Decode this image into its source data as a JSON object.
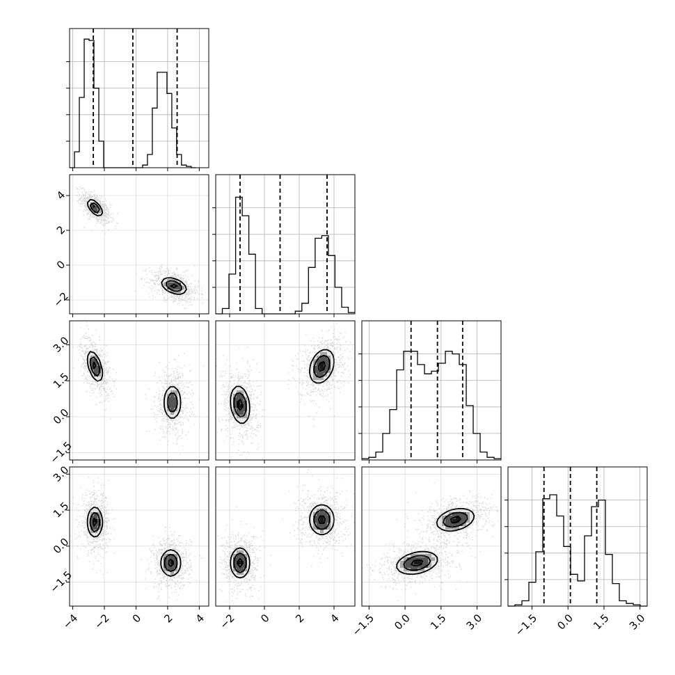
{
  "chart_data": {
    "type": "corner",
    "grid": true,
    "params": [
      {
        "index": 0,
        "lim": [
          -4.2,
          4.6
        ],
        "ticks": [
          -4,
          -2,
          0,
          2,
          4
        ],
        "tick_labels": [
          "−4",
          "−2",
          "0",
          "2",
          "4"
        ],
        "quantiles": [
          -2.7,
          -0.2,
          2.6
        ]
      },
      {
        "index": 1,
        "lim": [
          -2.8,
          5.2
        ],
        "ticks": [
          -2,
          0,
          2,
          4
        ],
        "tick_labels": [
          "−2",
          "0",
          "2",
          "4"
        ],
        "quantiles": [
          -1.4,
          0.9,
          3.6
        ]
      },
      {
        "index": 2,
        "lim": [
          -1.8,
          4.0
        ],
        "ticks": [
          -1.5,
          0.0,
          1.5,
          3.0
        ],
        "tick_labels": [
          "−1.5",
          "0.0",
          "1.5",
          "3.0"
        ],
        "quantiles": [
          0.25,
          1.35,
          2.4
        ]
      },
      {
        "index": 3,
        "lim": [
          -2.5,
          3.3
        ],
        "ticks": [
          -1.5,
          0.0,
          1.5,
          3.0
        ],
        "tick_labels": [
          "−1.5",
          "0.0",
          "1.5",
          "3.0"
        ],
        "quantiles": [
          -1.0,
          0.1,
          1.2
        ]
      }
    ],
    "histograms": [
      {
        "param": 0,
        "edges": [
          -4.2,
          3.8
        ],
        "counts": [
          0.0,
          0.12,
          0.53,
          0.97,
          0.96,
          0.6,
          0.2,
          0.0,
          0.0,
          0.0,
          0.0,
          0.0,
          0.0,
          0.0,
          0.0,
          0.02,
          0.1,
          0.45,
          0.72,
          0.72,
          0.56,
          0.3,
          0.1,
          0.02,
          0.01,
          0.0
        ]
      },
      {
        "param": 1,
        "edges": [
          -2.8,
          5.2
        ],
        "counts": [
          0.0,
          0.04,
          0.3,
          0.88,
          0.74,
          0.45,
          0.04,
          0.0,
          0.0,
          0.0,
          0.0,
          0.0,
          0.02,
          0.08,
          0.35,
          0.57,
          0.59,
          0.44,
          0.2,
          0.05,
          0.01
        ]
      },
      {
        "param": 2,
        "edges": [
          -1.8,
          4.0
        ],
        "counts": [
          0.01,
          0.02,
          0.06,
          0.2,
          0.38,
          0.68,
          0.82,
          0.82,
          0.72,
          0.65,
          0.67,
          0.73,
          0.82,
          0.8,
          0.72,
          0.41,
          0.2,
          0.06,
          0.02,
          0.01
        ]
      },
      {
        "param": 3,
        "edges": [
          -2.5,
          3.3
        ],
        "counts": [
          0.0,
          0.01,
          0.04,
          0.18,
          0.41,
          0.81,
          0.84,
          0.68,
          0.45,
          0.24,
          0.19,
          0.53,
          0.75,
          0.8,
          0.39,
          0.17,
          0.04,
          0.02,
          0.01,
          0.0
        ]
      }
    ],
    "joint_panels": [
      {
        "x_param": 0,
        "y_param": 1,
        "modes": [
          {
            "mx": -2.6,
            "my": 3.3,
            "sx": 0.3,
            "sy": 0.3,
            "rho": -0.6,
            "peak": 1.0
          },
          {
            "mx": 2.4,
            "my": -1.2,
            "sx": 0.5,
            "sy": 0.3,
            "rho": -0.4,
            "peak": 1.0
          }
        ]
      },
      {
        "x_param": 0,
        "y_param": 2,
        "modes": [
          {
            "mx": -2.6,
            "my": 2.1,
            "sx": 0.3,
            "sy": 0.4,
            "rho": -0.5,
            "peak": 1.0
          },
          {
            "mx": 2.3,
            "my": 0.6,
            "sx": 0.35,
            "sy": 0.45,
            "rho": 0.0,
            "peak": 0.9
          }
        ]
      },
      {
        "x_param": 0,
        "y_param": 3,
        "modes": [
          {
            "mx": -2.6,
            "my": 1.0,
            "sx": 0.3,
            "sy": 0.4,
            "rho": 0.0,
            "peak": 1.0
          },
          {
            "mx": 2.2,
            "my": -0.7,
            "sx": 0.4,
            "sy": 0.35,
            "rho": 0.0,
            "peak": 1.0
          }
        ]
      },
      {
        "x_param": 1,
        "y_param": 2,
        "modes": [
          {
            "mx": -1.4,
            "my": 0.5,
            "sx": 0.35,
            "sy": 0.5,
            "rho": -0.2,
            "peak": 1.0
          },
          {
            "mx": 3.3,
            "my": 2.1,
            "sx": 0.45,
            "sy": 0.45,
            "rho": 0.3,
            "peak": 1.0
          }
        ]
      },
      {
        "x_param": 1,
        "y_param": 3,
        "modes": [
          {
            "mx": -1.4,
            "my": -0.7,
            "sx": 0.35,
            "sy": 0.4,
            "rho": 0.0,
            "peak": 1.0
          },
          {
            "mx": 3.3,
            "my": 1.1,
            "sx": 0.45,
            "sy": 0.4,
            "rho": 0.0,
            "peak": 1.0
          }
        ]
      },
      {
        "x_param": 2,
        "y_param": 3,
        "modes": [
          {
            "mx": 0.5,
            "my": -0.7,
            "sx": 0.55,
            "sy": 0.3,
            "rho": 0.3,
            "peak": 1.0
          },
          {
            "mx": 2.1,
            "my": 1.1,
            "sx": 0.5,
            "sy": 0.3,
            "rho": 0.3,
            "peak": 1.0
          }
        ]
      }
    ],
    "levels": [
      0.3,
      0.6,
      0.9
    ],
    "colors": {
      "line": "#000000",
      "grid": "#b0b0b0",
      "points": "#8c8c8c",
      "density": "#000000",
      "background": "#ffffff"
    }
  }
}
